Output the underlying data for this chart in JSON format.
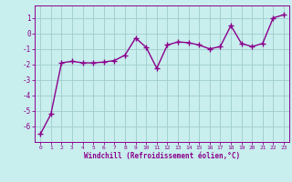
{
  "x": [
    0,
    1,
    2,
    3,
    4,
    5,
    6,
    7,
    8,
    9,
    10,
    11,
    12,
    13,
    14,
    15,
    16,
    17,
    18,
    19,
    20,
    21,
    22,
    23
  ],
  "y": [
    -6.5,
    -5.2,
    -1.9,
    -1.8,
    -1.9,
    -1.9,
    -1.85,
    -1.75,
    -1.4,
    -0.3,
    -0.9,
    -2.25,
    -0.75,
    -0.55,
    -0.6,
    -0.75,
    -1.0,
    -0.85,
    0.5,
    -0.65,
    -0.85,
    -0.65,
    1.0,
    1.2
  ],
  "line_color": "#8B008B",
  "marker": "+",
  "marker_size": 4,
  "marker_linewidth": 1.0,
  "bg_color": "#c8eeee",
  "grid_color": "#a0cccc",
  "tick_label_color": "#8B008B",
  "xlabel": "Windchill (Refroidissement éolien,°C)",
  "xlabel_color": "#8B008B",
  "ylim": [
    -7,
    1.8
  ],
  "yticks": [
    -6,
    -5,
    -4,
    -3,
    -2,
    -1,
    0,
    1
  ],
  "xlim": [
    -0.5,
    23.5
  ],
  "xticks": [
    0,
    1,
    2,
    3,
    4,
    5,
    6,
    7,
    8,
    9,
    10,
    11,
    12,
    13,
    14,
    15,
    16,
    17,
    18,
    19,
    20,
    21,
    22,
    23
  ],
  "line_width": 1.0,
  "spine_color": "#8B008B"
}
